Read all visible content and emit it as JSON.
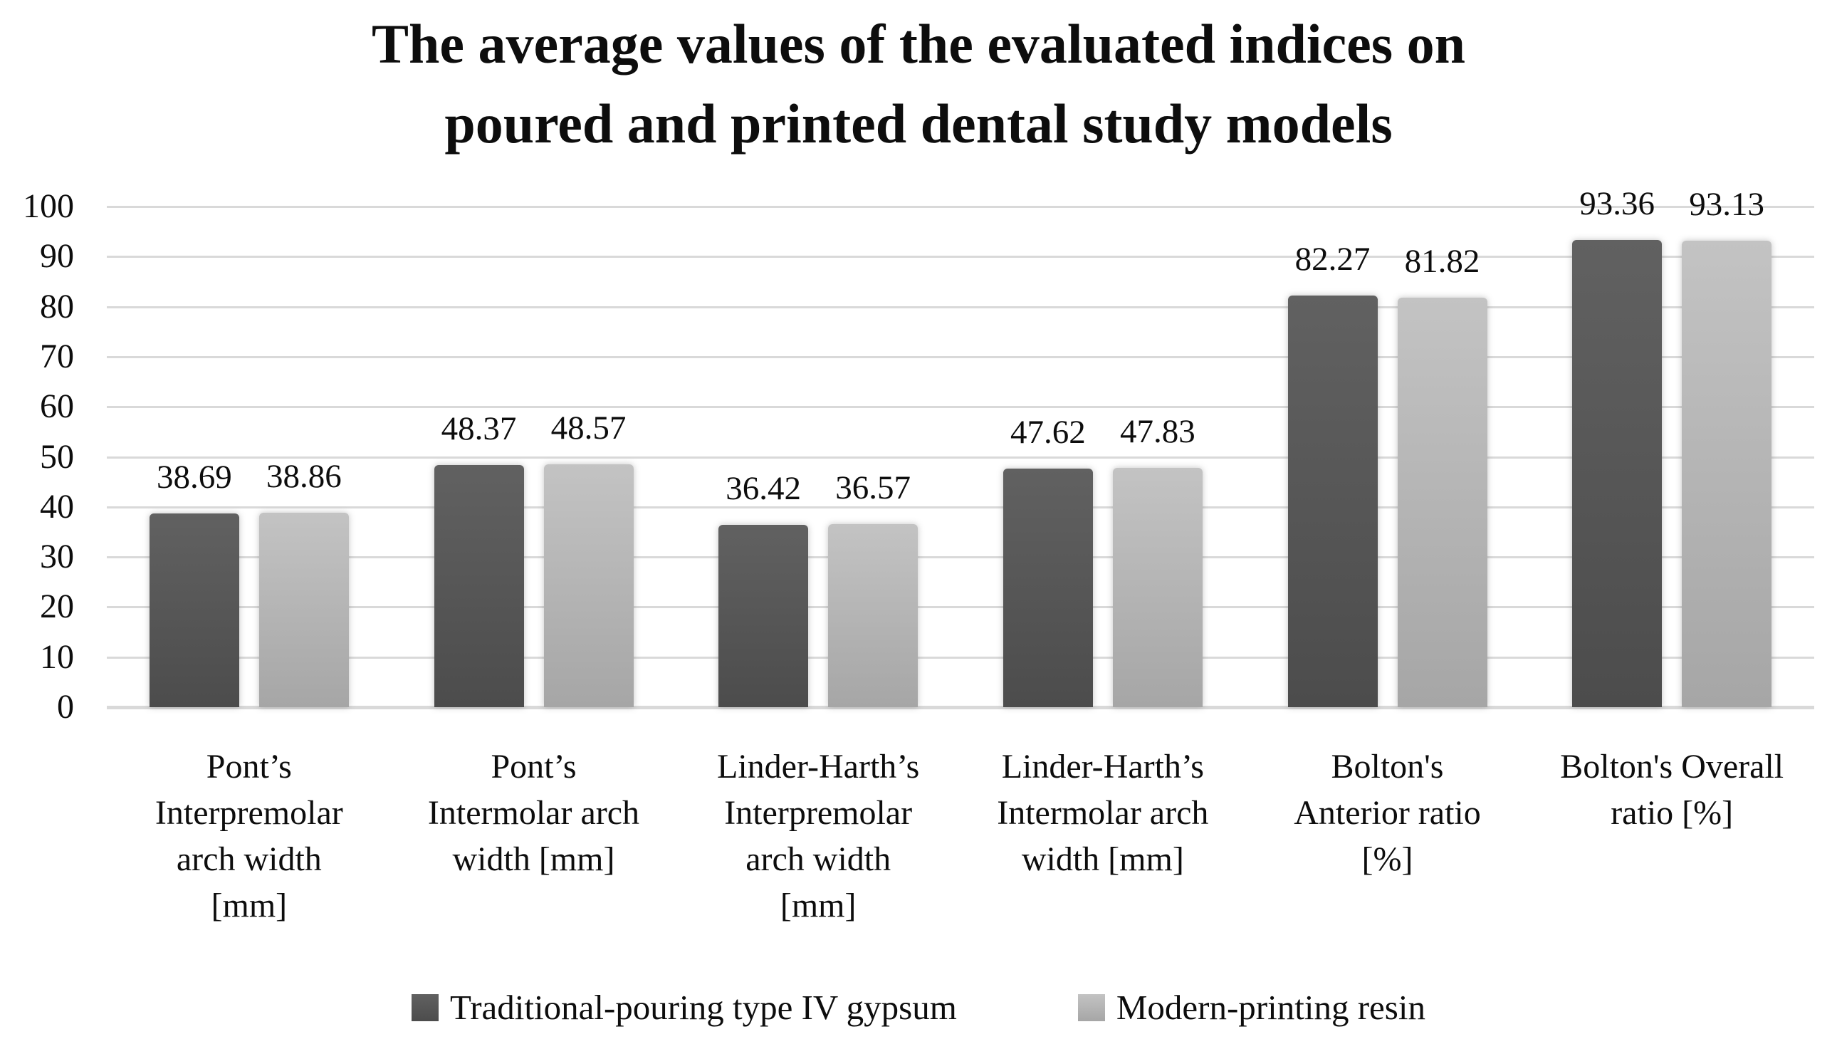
{
  "title": {
    "lines": [
      "The average values of the evaluated indices on",
      "poured and printed dental study models"
    ]
  },
  "chart_data": {
    "type": "bar",
    "title": "The average values of the evaluated indices on poured and printed dental study models",
    "categories": [
      "Pont’s\nInterpremolar\narch width\n[mm]",
      "Pont’s\nIntermolar arch\nwidth [mm]",
      "Linder-Harth’s\nInterpremolar\narch width\n[mm]",
      "Linder-Harth’s\nIntermolar arch\nwidth [mm]",
      "Bolton's\nAnterior ratio\n[%]",
      "Bolton's Overall\nratio [%]"
    ],
    "series": [
      {
        "name": "Traditional-pouring type IV gypsum",
        "values": [
          38.69,
          48.37,
          36.42,
          47.62,
          82.27,
          93.36
        ],
        "color_top": "#616161",
        "color_bottom": "#4c4c4c"
      },
      {
        "name": "Modern-printing resin",
        "values": [
          38.86,
          48.57,
          36.57,
          47.83,
          81.82,
          93.13
        ],
        "color_top": "#c3c3c3",
        "color_bottom": "#a6a6a6"
      }
    ],
    "ylim": [
      0,
      100
    ],
    "ytick_step": 10,
    "yticks": [
      0,
      10,
      20,
      30,
      40,
      50,
      60,
      70,
      80,
      90,
      100
    ],
    "xlabel": "",
    "ylabel": "",
    "grid": true,
    "legend_position": "bottom",
    "value_labels": true
  },
  "colors": {
    "background": "#ffffff",
    "gridline": "#d9d9d9",
    "text": "#0d0d0d"
  }
}
